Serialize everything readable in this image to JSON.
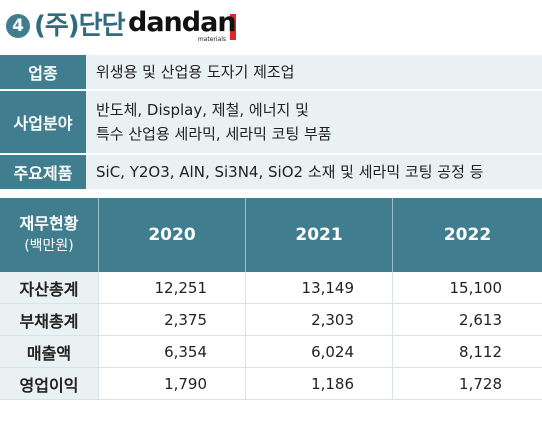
{
  "header": {
    "number": "4",
    "company": "(주)단단",
    "logo_text": "dandan",
    "logo_sub": "materials",
    "accent_color": "#3f7d8f",
    "logo_color": "#e2252b"
  },
  "info": [
    {
      "label": "업종",
      "lines": [
        "위생용 및 산업용 도자기 제조업"
      ]
    },
    {
      "label": "사업분야",
      "lines": [
        "반도체, Display, 제철, 에너지 및",
        "특수 산업용 세라믹, 세라믹 코팅 부품"
      ]
    },
    {
      "label": "주요제품",
      "lines": [
        "SiC, Y2O3, AlN, Si3N4, SiO2 소재 및 세라믹 코팅 공정 등"
      ]
    }
  ],
  "financials": {
    "corner_title": "재무현황",
    "corner_unit": "(백만원)",
    "years": [
      "2020",
      "2021",
      "2022"
    ],
    "rows": [
      {
        "label": "자산총계",
        "values": [
          "12,251",
          "13,149",
          "15,100"
        ]
      },
      {
        "label": "부채총계",
        "values": [
          "2,375",
          "2,303",
          "2,613"
        ]
      },
      {
        "label": "매출액",
        "values": [
          "6,354",
          "6,024",
          "8,112"
        ]
      },
      {
        "label": "영업이익",
        "values": [
          "1,790",
          "1,186",
          "1,728"
        ]
      }
    ]
  }
}
